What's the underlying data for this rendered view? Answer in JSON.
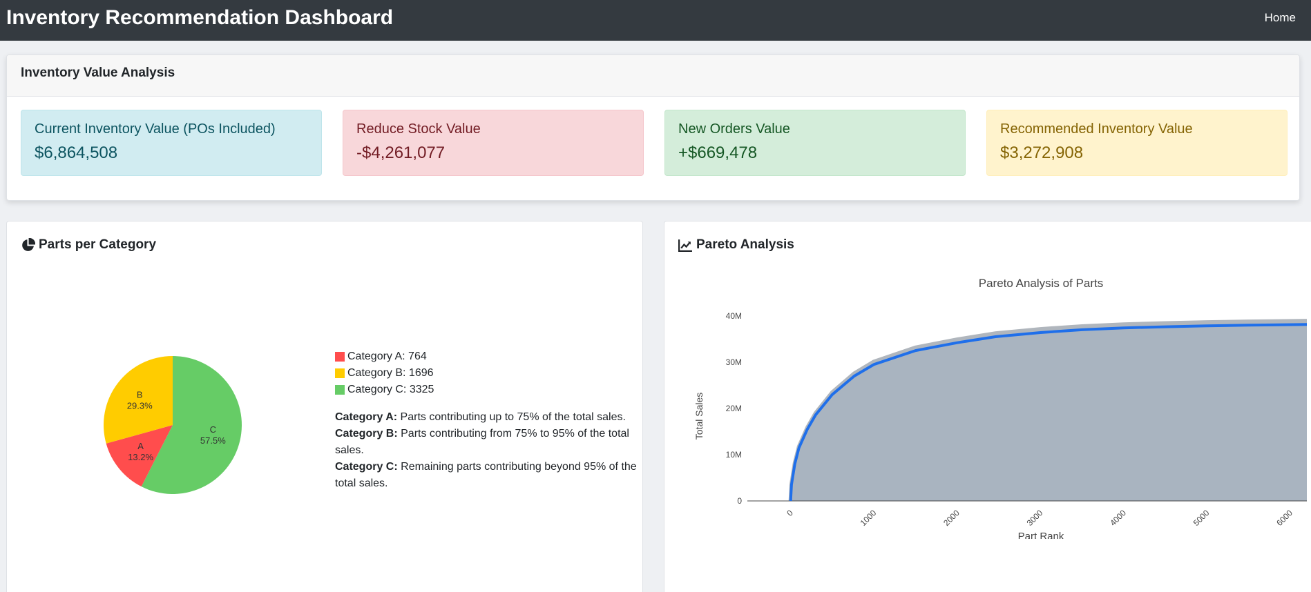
{
  "navbar": {
    "title": "Inventory Recommendation Dashboard",
    "home_link": "Home"
  },
  "value_analysis": {
    "title": "Inventory Value Analysis",
    "stats": {
      "current": {
        "label": "Current Inventory Value (POs Included)",
        "value": "$6,864,508"
      },
      "reduce": {
        "label": "Reduce Stock Value",
        "value": "-$4,261,077"
      },
      "new_orders": {
        "label": "New Orders Value",
        "value": "+$669,478"
      },
      "recommended": {
        "label": "Recommended Inventory Value",
        "value": "$3,272,908"
      }
    }
  },
  "parts_per_category": {
    "title": "Parts per Category",
    "icon": "pie-chart-icon",
    "legend": [
      {
        "text": "Category A: 764",
        "color": "#ff4d4d"
      },
      {
        "text": "Category B: 1696",
        "color": "#ffcc00"
      },
      {
        "text": "Category C: 3325",
        "color": "#66cc66"
      }
    ],
    "descriptions": [
      {
        "label": "Category A:",
        "text": " Parts contributing up to 75% of the total sales."
      },
      {
        "label": "Category B:",
        "text": " Parts contributing from 75% to 95% of the total sales."
      },
      {
        "label": "Category C:",
        "text": " Remaining parts contributing beyond 95% of the total sales."
      }
    ]
  },
  "pareto": {
    "title": "Pareto Analysis",
    "icon": "line-chart-icon"
  },
  "chart_data": [
    {
      "type": "pie",
      "categories": [
        "A",
        "B",
        "C"
      ],
      "values": [
        764,
        1696,
        3325
      ],
      "labels": [
        "13.2%",
        "29.3%",
        "57.5%"
      ],
      "colors": [
        "#ff4d4d",
        "#ffcc00",
        "#66cc66"
      ]
    },
    {
      "type": "area",
      "title": "Pareto Analysis of Parts",
      "xlabel": "Part Rank",
      "ylabel": "Total Sales",
      "xlim": [
        -520,
        6200
      ],
      "ylim": [
        0,
        44000000
      ],
      "x_ticks": [
        "0",
        "1000",
        "2000",
        "3000",
        "4000",
        "5000",
        "6000"
      ],
      "x_tick_values": [
        0,
        1000,
        2000,
        3000,
        4000,
        5000,
        6000
      ],
      "y_ticks": [
        "0",
        "10M",
        "20M",
        "30M",
        "40M"
      ],
      "y_tick_values": [
        0,
        10000000,
        20000000,
        30000000,
        40000000
      ],
      "series": [
        {
          "x": [
            0,
            10,
            50,
            100,
            200,
            300,
            500,
            764,
            1000,
            1500,
            2000,
            2460,
            3000,
            3500,
            4000,
            4500,
            5000,
            5500,
            5785,
            6200
          ],
          "values": [
            0,
            3500000,
            8000000,
            11500000,
            15500000,
            18600000,
            23000000,
            27000000,
            29500000,
            32500000,
            34200000,
            35500000,
            36400000,
            37000000,
            37400000,
            37650000,
            37850000,
            38000000,
            38050000,
            38150000
          ],
          "color": "#1f6fea"
        }
      ]
    }
  ]
}
